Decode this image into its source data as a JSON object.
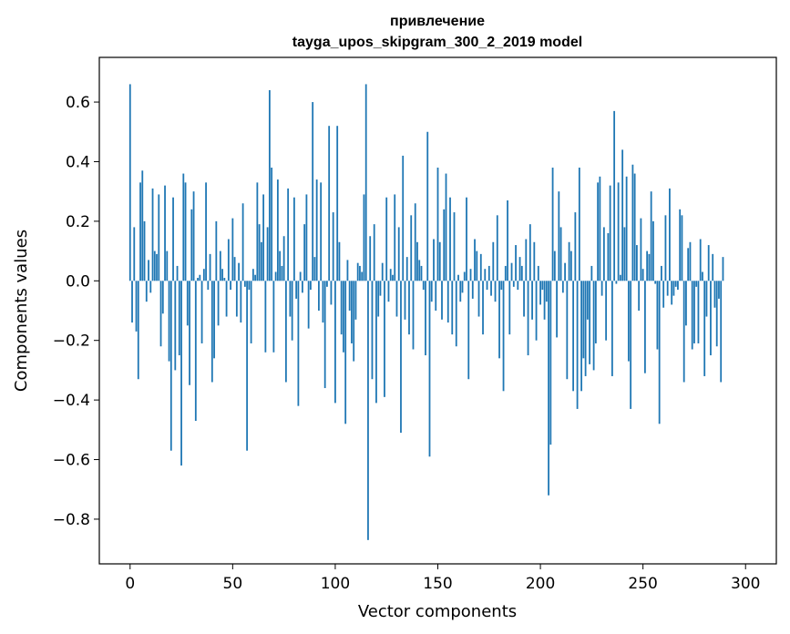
{
  "chart_data": {
    "type": "bar",
    "title_line1": "привлечение",
    "title_line2": "tayga_upos_skipgram_300_2_2019 model",
    "xlabel": "Vector components",
    "ylabel": "Components values",
    "xlim": [
      -15,
      315
    ],
    "ylim": [
      -0.95,
      0.75
    ],
    "xticks": [
      0,
      50,
      100,
      150,
      200,
      250,
      300
    ],
    "xtick_labels": [
      "0",
      "50",
      "100",
      "150",
      "200",
      "250",
      "300"
    ],
    "yticks": [
      -0.8,
      -0.6,
      -0.4,
      -0.2,
      0.0,
      0.2,
      0.4,
      0.6
    ],
    "ytick_labels": [
      "−0.8",
      "−0.6",
      "−0.4",
      "−0.2",
      "0.0",
      "0.2",
      "0.4",
      "0.6"
    ],
    "bar_color": "#1f77b4",
    "values": [
      0.66,
      -0.14,
      0.18,
      -0.17,
      -0.33,
      0.33,
      0.37,
      0.2,
      -0.07,
      0.07,
      -0.04,
      0.31,
      0.1,
      0.09,
      0.29,
      -0.22,
      -0.11,
      0.32,
      0.1,
      -0.27,
      -0.57,
      0.28,
      -0.3,
      0.05,
      -0.25,
      -0.62,
      0.36,
      0.33,
      -0.15,
      -0.35,
      0.24,
      0.3,
      -0.47,
      0.01,
      0.02,
      -0.21,
      0.04,
      0.33,
      -0.03,
      0.09,
      -0.34,
      -0.26,
      0.2,
      -0.15,
      0.1,
      0.04,
      0.01,
      -0.12,
      0.14,
      -0.03,
      0.21,
      0.08,
      -0.12,
      0.06,
      -0.14,
      0.26,
      -0.02,
      -0.57,
      -0.03,
      -0.21,
      0.04,
      0.02,
      0.33,
      0.19,
      0.13,
      0.29,
      -0.24,
      0.18,
      0.64,
      0.38,
      -0.24,
      0.03,
      0.34,
      0.1,
      0.05,
      0.15,
      -0.34,
      0.31,
      -0.12,
      -0.2,
      0.28,
      -0.06,
      -0.42,
      0.03,
      -0.04,
      0.19,
      0.29,
      -0.16,
      -0.03,
      0.6,
      0.08,
      0.34,
      -0.1,
      0.33,
      -0.14,
      -0.36,
      -0.02,
      0.52,
      -0.08,
      0.23,
      -0.41,
      0.52,
      0.13,
      -0.18,
      -0.24,
      -0.48,
      0.07,
      -0.1,
      -0.21,
      -0.27,
      -0.13,
      0.06,
      0.05,
      0.03,
      0.29,
      0.66,
      -0.87,
      0.15,
      -0.33,
      0.19,
      -0.41,
      -0.12,
      -0.05,
      0.06,
      -0.39,
      0.28,
      -0.07,
      0.04,
      0.02,
      0.29,
      -0.12,
      0.18,
      -0.51,
      0.42,
      -0.13,
      0.08,
      -0.18,
      0.22,
      -0.23,
      0.26,
      0.13,
      0.07,
      0.05,
      -0.03,
      -0.25,
      0.5,
      -0.59,
      -0.07,
      0.14,
      -0.1,
      0.38,
      0.13,
      -0.13,
      0.24,
      0.36,
      -0.14,
      0.28,
      -0.18,
      0.23,
      -0.22,
      0.02,
      -0.07,
      -0.04,
      0.03,
      0.28,
      -0.33,
      0.04,
      -0.06,
      0.14,
      0.1,
      -0.12,
      0.09,
      -0.18,
      0.04,
      -0.03,
      0.05,
      -0.05,
      0.13,
      -0.07,
      0.22,
      -0.26,
      -0.03,
      -0.37,
      0.05,
      0.27,
      -0.18,
      0.06,
      -0.02,
      0.12,
      -0.03,
      0.08,
      0.05,
      -0.12,
      0.14,
      -0.25,
      0.19,
      -0.13,
      0.13,
      -0.2,
      0.05,
      -0.08,
      -0.03,
      -0.13,
      -0.07,
      -0.72,
      -0.55,
      0.38,
      0.1,
      -0.19,
      0.3,
      0.18,
      -0.04,
      0.06,
      -0.33,
      0.13,
      0.1,
      -0.37,
      0.23,
      -0.43,
      0.38,
      -0.37,
      -0.26,
      -0.32,
      -0.13,
      -0.28,
      0.05,
      -0.3,
      -0.21,
      0.33,
      0.35,
      -0.05,
      0.18,
      -0.2,
      0.16,
      0.32,
      -0.32,
      0.57,
      -0.01,
      0.33,
      0.02,
      0.44,
      0.18,
      0.35,
      -0.27,
      -0.43,
      0.39,
      0.36,
      0.12,
      -0.1,
      0.21,
      0.04,
      -0.31,
      0.1,
      0.09,
      0.3,
      0.2,
      -0.01,
      -0.23,
      -0.48,
      0.05,
      -0.09,
      0.22,
      -0.05,
      0.31,
      -0.08,
      -0.05,
      -0.02,
      -0.03,
      0.24,
      0.22,
      -0.34,
      -0.15,
      0.11,
      0.13,
      -0.23,
      -0.21,
      -0.02,
      -0.21,
      0.14,
      0.03,
      -0.32,
      -0.12,
      0.12,
      -0.25,
      0.09,
      -0.09,
      -0.22,
      -0.06,
      -0.34,
      0.08
    ]
  }
}
